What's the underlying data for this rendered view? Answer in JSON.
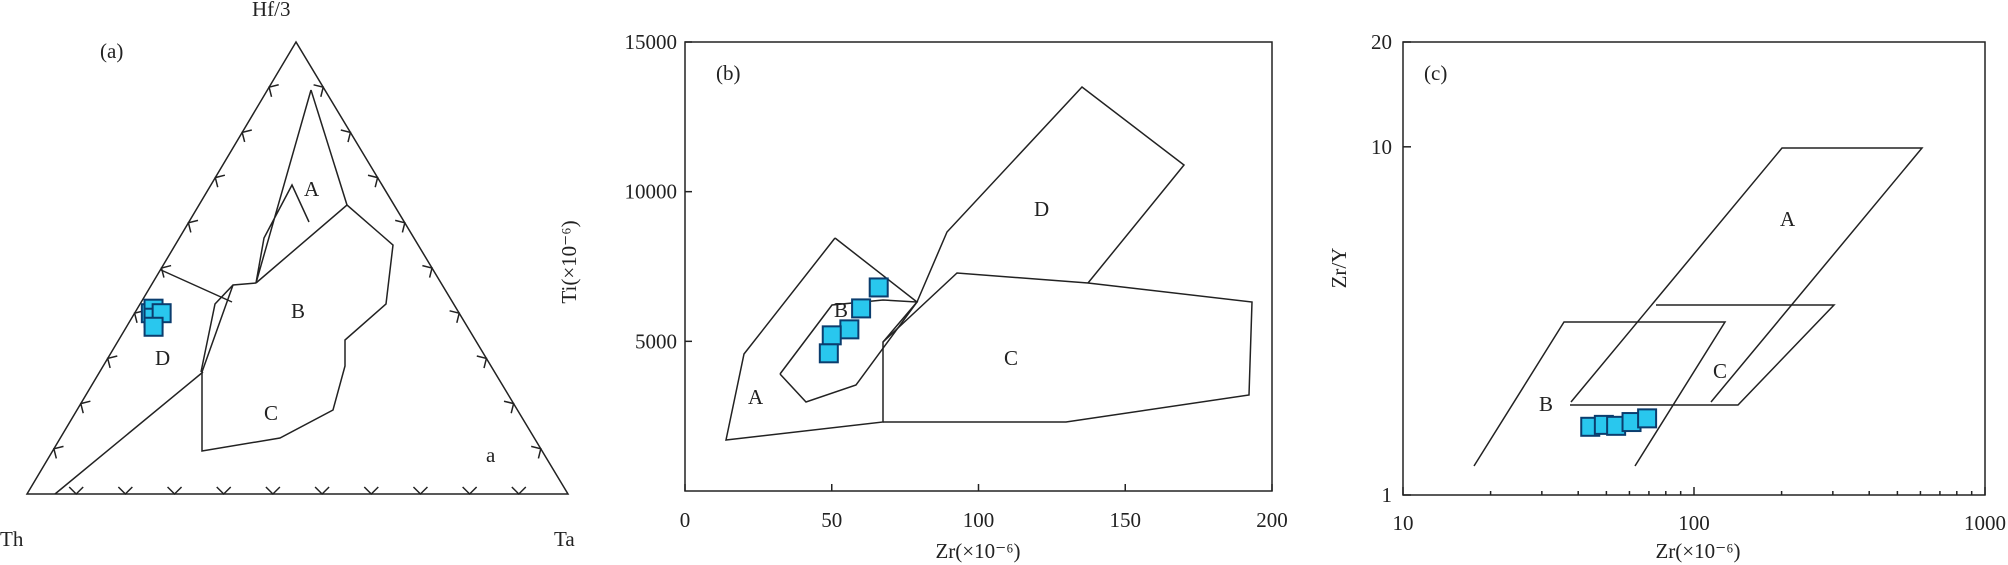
{
  "colors": {
    "marker_fill": "#29c7ee",
    "marker_stroke": "#0b3d6e",
    "line": "#222222"
  },
  "chart_data": [
    {
      "panel_label": "(a)",
      "type": "ternary",
      "apices": {
        "top": "Hf/3",
        "left": "Th",
        "right": "Ta"
      },
      "field_labels": [
        "A",
        "B",
        "C",
        "D",
        "a"
      ],
      "points_hf_th_ta": [
        [
          40,
          57,
          3
        ],
        [
          41,
          56,
          3
        ],
        [
          39,
          57,
          4
        ],
        [
          40,
          55,
          5
        ],
        [
          37,
          58,
          5
        ]
      ]
    },
    {
      "panel_label": "(b)",
      "type": "scatter",
      "xlabel": "Zr(×10⁻⁶)",
      "ylabel": "Ti(×10⁻⁶)",
      "xlim": [
        0,
        200
      ],
      "ylim": [
        0,
        15000
      ],
      "x_ticks": [
        "0",
        "50",
        "100",
        "150",
        "200"
      ],
      "y_ticks": [
        "5000",
        "10000",
        "15000"
      ],
      "field_labels": [
        "A",
        "B",
        "C",
        "D"
      ],
      "points": [
        [
          66,
          6800
        ],
        [
          60,
          6100
        ],
        [
          56,
          5400
        ],
        [
          50,
          5200
        ],
        [
          49,
          4600
        ]
      ]
    },
    {
      "panel_label": "(c)",
      "type": "scatter",
      "xscale": "log",
      "yscale": "log",
      "xlabel": "Zr(×10⁻⁶)",
      "ylabel": "Zr/Y",
      "xlim": [
        10,
        1000
      ],
      "ylim": [
        1,
        20
      ],
      "x_ticks": [
        "10",
        "100",
        "1000"
      ],
      "y_ticks": [
        "1",
        "10",
        "20"
      ],
      "field_labels": [
        "A",
        "B",
        "C"
      ],
      "points": [
        [
          44,
          1.57
        ],
        [
          49,
          1.59
        ],
        [
          54,
          1.58
        ],
        [
          61,
          1.62
        ],
        [
          69,
          1.66
        ]
      ]
    }
  ]
}
